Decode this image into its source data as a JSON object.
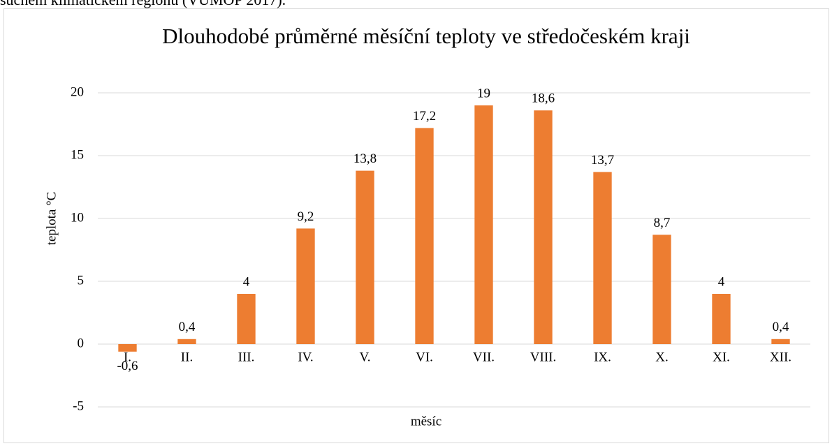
{
  "caption": "suchém klimatickém regionu (VÚMOP 2017).",
  "chart_data": {
    "type": "bar",
    "title": "Dlouhodobé průměrné měsíční teploty ve středočeském kraji",
    "x_label": "měsíc",
    "y_label": "teplota °C",
    "categories": [
      "I.",
      "II.",
      "III.",
      "IV.",
      "V.",
      "VI.",
      "VII.",
      "VIII.",
      "IX.",
      "X.",
      "XI.",
      "XII."
    ],
    "values": [
      -0.6,
      0.4,
      4,
      9.2,
      13.8,
      17.2,
      19,
      18.6,
      13.7,
      8.7,
      4,
      0.4
    ],
    "value_labels": [
      "-0,6",
      "0,4",
      "4",
      "9,2",
      "13,8",
      "17,2",
      "19",
      "18,6",
      "13,7",
      "8,7",
      "4",
      "0,4"
    ],
    "color": "#ed7d31",
    "ylim": [
      -5,
      20
    ],
    "yticks": [
      -5,
      0,
      5,
      10,
      15,
      20
    ],
    "grid": true
  }
}
